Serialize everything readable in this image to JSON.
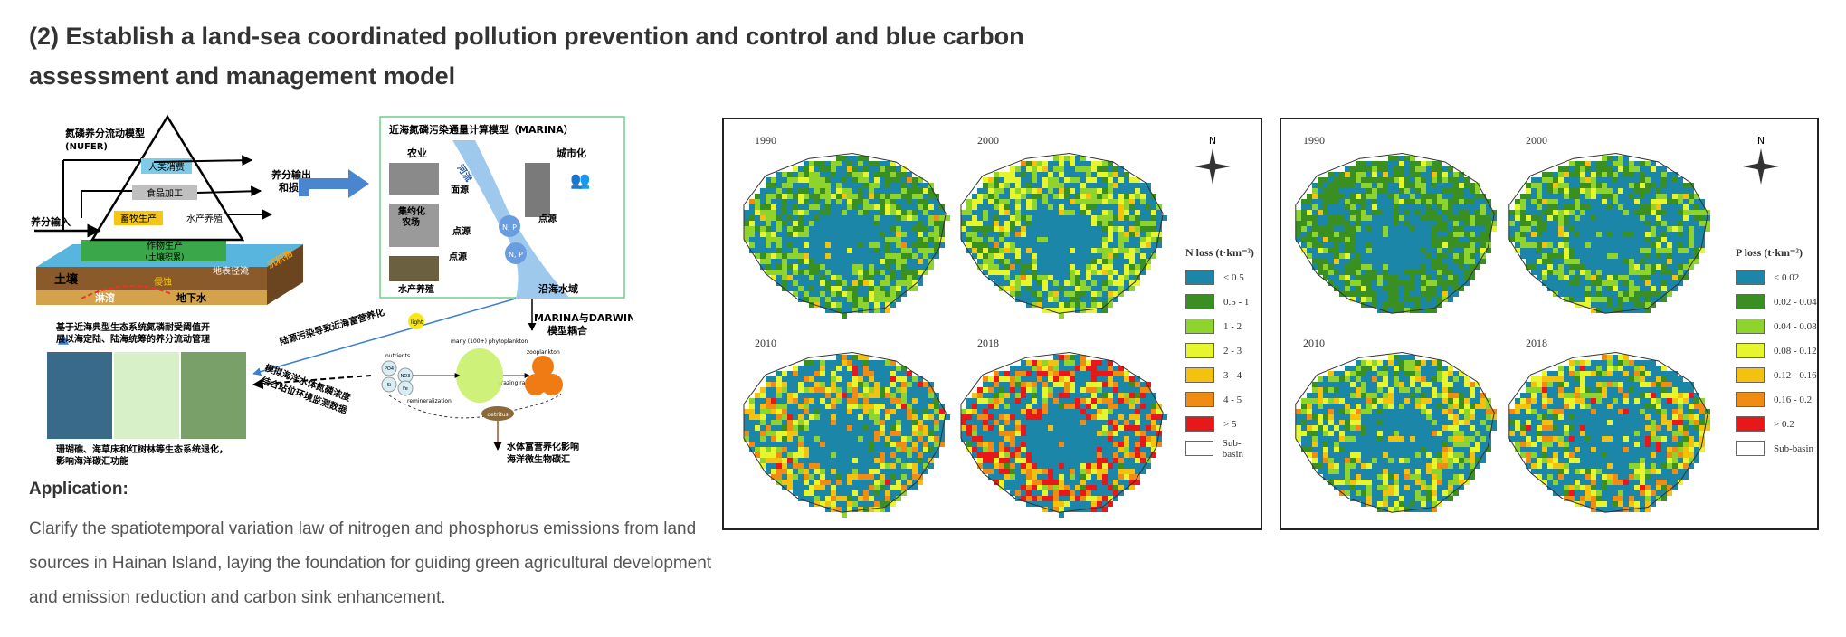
{
  "title": "(2) Establish a land-sea coordinated pollution prevention and control and blue carbon assessment and management model",
  "application_label": "Application:",
  "application_text": "Clarify the spatiotemporal variation law of nitrogen and phosphorus emissions from land sources in Hainan Island, laying the foundation for guiding green agricultural development and emission reduction and carbon sink enhancement.",
  "diagram": {
    "nufer_title": "氮磷养分流动模型",
    "nufer_abbr": "(NUFER)",
    "pyramid_levels": [
      "人类消费",
      "食品加工",
      "畜牧生产",
      "水产养殖",
      "作物生产",
      "(土壤积累)"
    ],
    "nutrient_input": "养分输入",
    "nutrient_output": "养分输出",
    "nutrient_output_2": "和损失",
    "soil": "土壤",
    "leaching": "淋溶",
    "groundwater": "地下水",
    "erosion": "侵蚀",
    "surface_runoff": "地表径流",
    "sediment": "沉积物",
    "marina_title": "近海氮磷污染通量计算模型（MARINA）",
    "agriculture": "农业",
    "urbanization": "城市化",
    "intensive_farm_1": "集约化",
    "intensive_farm_2": "农场",
    "aquaculture": "水产养殖",
    "river": "河流",
    "nonpoint_source": "面源",
    "point_source_1": "点源",
    "point_source_2": "点源",
    "point_source_3": "点源",
    "coastal_waters": "沿海水域",
    "np_label": "N, P",
    "coupling_1": "MARINA与DARWIN",
    "coupling_2": "模型耦合",
    "land_pollution_note": "陆源污染导致近海富营养化",
    "assess_note_1": "基于近海典型生态系统氮磷耐受阈值开",
    "assess_note_2": "展以海定陆、陆海统筹的养分流动管理",
    "simulation_note_1": "模拟海洋水体氮磷浓度",
    "simulation_note_2": "结合站位环境监测数据",
    "ecosystem_note_1": "珊瑚礁、海草床和红树林等生态系统退化，",
    "ecosystem_note_2": "影响海洋碳汇功能",
    "eutrophication_note_1": "水体富营养化影响",
    "eutrophication_note_2": "海洋微生物碳汇",
    "light": "light",
    "nutrients": "nutrients",
    "phyto": "many (100+) phytoplankton",
    "zooplankton": "zooplankton",
    "grazing": "grazing rates",
    "detritus": "detritus",
    "remin": "remineralization",
    "po4": "PO4",
    "no3": "NO3",
    "si": "Si",
    "fe": "Fe",
    "pyramid_fill": "#7ecbe8",
    "layer_fill": "#2e9bc8"
  },
  "maps": {
    "years": [
      "1990",
      "2000",
      "2010",
      "2018"
    ],
    "n_legend": {
      "title": "N loss (t·km⁻²)",
      "items": [
        {
          "label": "< 0.5",
          "color": "#1b86a8"
        },
        {
          "label": "0.5 - 1",
          "color": "#3a8f22"
        },
        {
          "label": "1 - 2",
          "color": "#8fd42c"
        },
        {
          "label": "2 - 3",
          "color": "#e6f52c"
        },
        {
          "label": "3 - 4",
          "color": "#f5c10f"
        },
        {
          "label": "4 - 5",
          "color": "#f08c14"
        },
        {
          "label": "> 5",
          "color": "#e8171a"
        },
        {
          "label": "Sub-basin",
          "color": "#ffffff"
        }
      ]
    },
    "p_legend": {
      "title": "P loss (t·km⁻²)",
      "items": [
        {
          "label": "< 0.02",
          "color": "#1b86a8"
        },
        {
          "label": "0.02 - 0.04",
          "color": "#3a8f22"
        },
        {
          "label": "0.04 - 0.08",
          "color": "#8fd42c"
        },
        {
          "label": "0.08 - 0.12",
          "color": "#e6f52c"
        },
        {
          "label": "0.12 - 0.16",
          "color": "#f5c10f"
        },
        {
          "label": "0.16 - 0.2",
          "color": "#f08c14"
        },
        {
          "label": "> 0.2",
          "color": "#e8171a"
        },
        {
          "label": "Sub-basin",
          "color": "#ffffff"
        }
      ]
    },
    "north": "N"
  }
}
